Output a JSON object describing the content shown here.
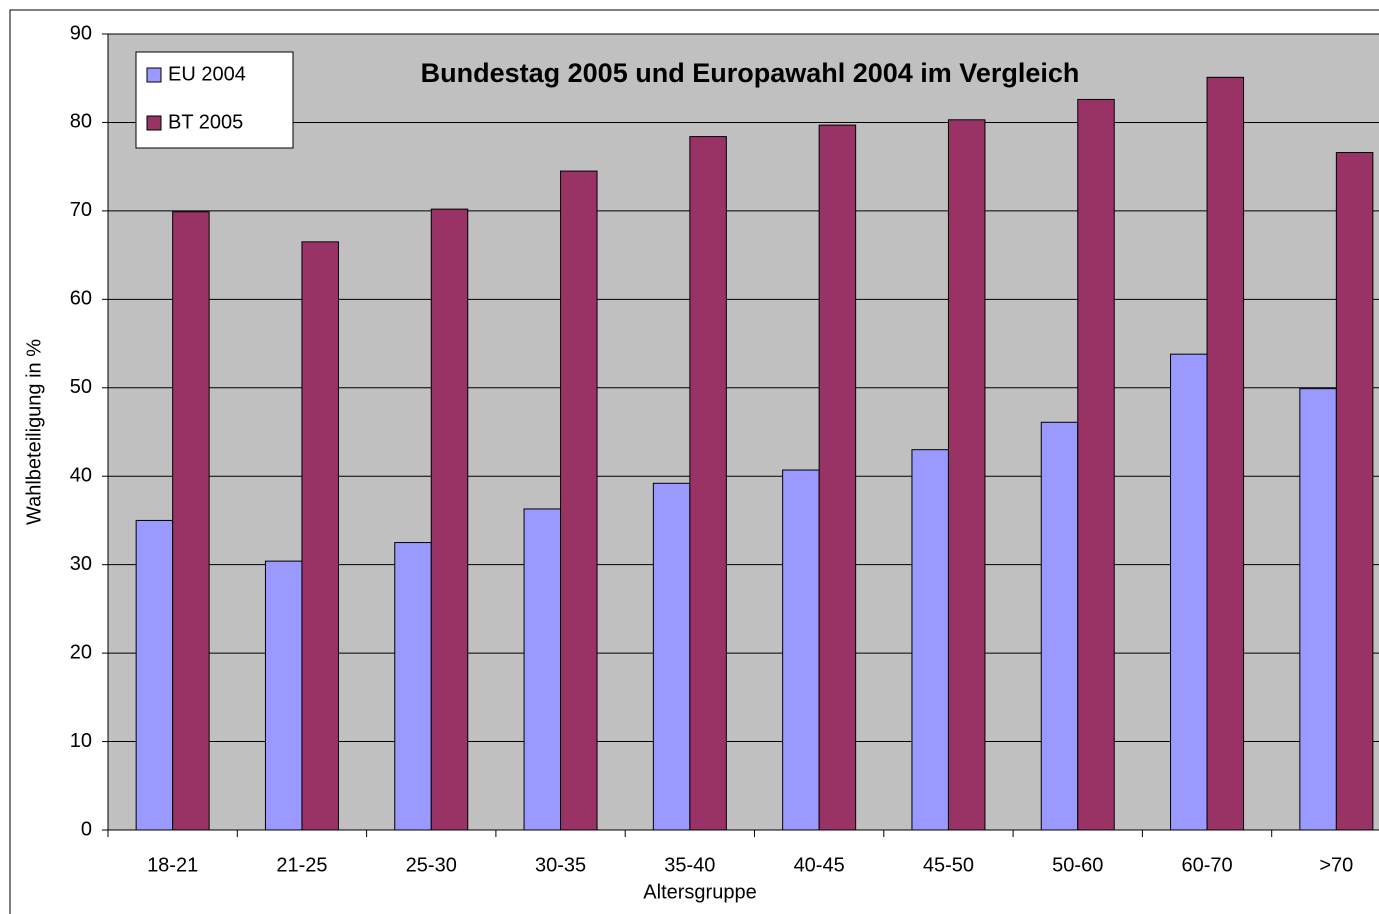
{
  "chart_data": {
    "type": "bar",
    "title": "Bundestag 2005 und Europawahl 2004 im Vergleich",
    "xlabel": "Altersgruppe",
    "ylabel": "Wahlbeteiligung in %",
    "categories": [
      "18-21",
      "21-25",
      "25-30",
      "30-35",
      "35-40",
      "40-45",
      "45-50",
      "50-60",
      "60-70",
      ">70"
    ],
    "series": [
      {
        "name": "EU 2004",
        "color": "#9999ff",
        "values": [
          35.0,
          30.4,
          32.5,
          36.3,
          39.2,
          40.7,
          43.0,
          46.1,
          53.8,
          49.9
        ]
      },
      {
        "name": "BT 2005",
        "color": "#993366",
        "values": [
          69.9,
          66.5,
          70.2,
          74.5,
          78.4,
          79.7,
          80.3,
          82.6,
          85.1,
          76.6
        ]
      }
    ],
    "ylim": [
      0,
      90
    ],
    "yticks": [
      0,
      10,
      20,
      30,
      40,
      50,
      60,
      70,
      80,
      90
    ],
    "grid": true,
    "background": "#c0c0c0",
    "legend": "top-left"
  }
}
